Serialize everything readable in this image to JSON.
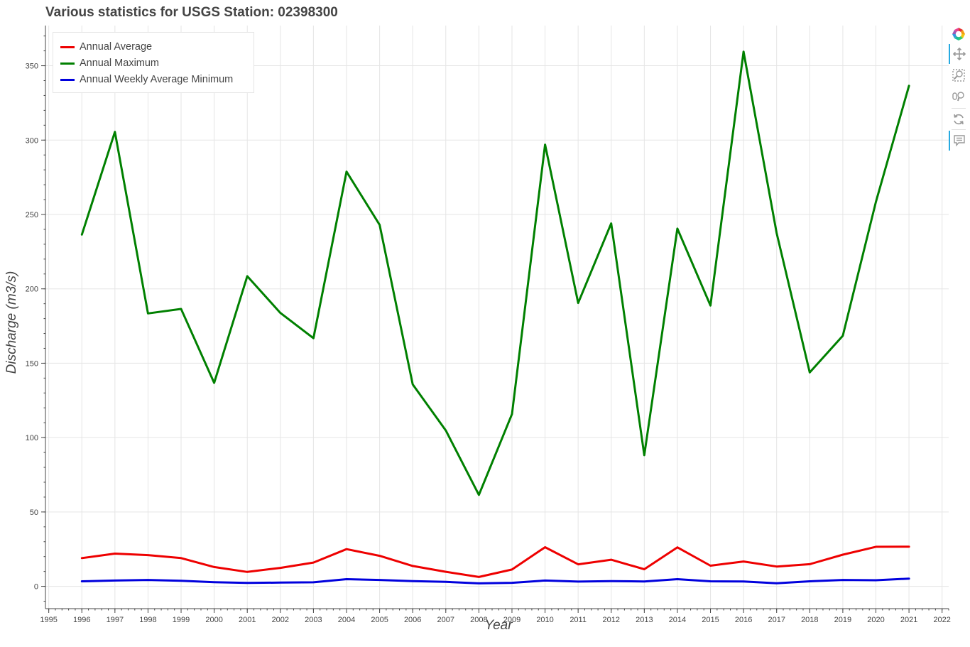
{
  "chart_data": {
    "type": "line",
    "title": "Various statistics for USGS Station: 02398300",
    "xlabel": "Year",
    "ylabel": "Discharge (m3/s)",
    "xlim": [
      1994.9,
      2022.2
    ],
    "ylim": [
      -15,
      377
    ],
    "x_ticks": [
      1995,
      1996,
      1997,
      1998,
      1999,
      2000,
      2001,
      2002,
      2003,
      2004,
      2005,
      2006,
      2007,
      2008,
      2009,
      2010,
      2011,
      2012,
      2013,
      2014,
      2015,
      2016,
      2017,
      2018,
      2019,
      2020,
      2021,
      2022
    ],
    "y_ticks": [
      0,
      50,
      100,
      150,
      200,
      250,
      300,
      350
    ],
    "grid": true,
    "legend_position": "top-left",
    "x": [
      1996,
      1997,
      1998,
      1999,
      2000,
      2001,
      2002,
      2003,
      2004,
      2005,
      2006,
      2007,
      2008,
      2009,
      2010,
      2011,
      2012,
      2013,
      2014,
      2015,
      2016,
      2017,
      2018,
      2019,
      2020,
      2021
    ],
    "series": [
      {
        "name": "Annual Average",
        "color": "#ee0000",
        "values": [
          19,
          22,
          21,
          19,
          13,
          9.7,
          12.4,
          16,
          25,
          20.5,
          13.7,
          9.8,
          6.3,
          11.3,
          26.3,
          14.8,
          17.9,
          11.5,
          26.2,
          13.9,
          16.7,
          13.3,
          14.9,
          21.3,
          26.6,
          26.7
        ]
      },
      {
        "name": "Annual Maximum",
        "color": "#008000",
        "values": [
          236.5,
          305.5,
          183.5,
          186.5,
          136.8,
          208.5,
          183.8,
          166.8,
          278.8,
          243,
          135.8,
          104.8,
          61.5,
          115.8,
          297,
          190.5,
          244,
          88.2,
          240.5,
          188.8,
          359.5,
          237.5,
          143.8,
          168.5,
          258.5,
          336.5
        ]
      },
      {
        "name": "Annual Weekly Average Minimum",
        "color": "#0000dd",
        "values": [
          3.4,
          3.9,
          4.3,
          3.7,
          2.8,
          2.3,
          2.5,
          2.7,
          4.8,
          4.3,
          3.5,
          3.0,
          2.0,
          2.4,
          3.9,
          3.2,
          3.5,
          3.3,
          4.8,
          3.4,
          3.3,
          2.1,
          3.4,
          4.3,
          4.1,
          5.2
        ]
      }
    ]
  },
  "toolbar": {
    "tools": [
      {
        "icon": "bokeh-logo-icon",
        "active": false
      },
      {
        "icon": "pan-icon",
        "active": true
      },
      {
        "icon": "box-zoom-icon",
        "active": false
      },
      {
        "icon": "wheel-zoom-icon",
        "active": false
      },
      {
        "icon": "reset-icon",
        "active": false
      },
      {
        "icon": "hover-icon",
        "active": true
      }
    ]
  }
}
